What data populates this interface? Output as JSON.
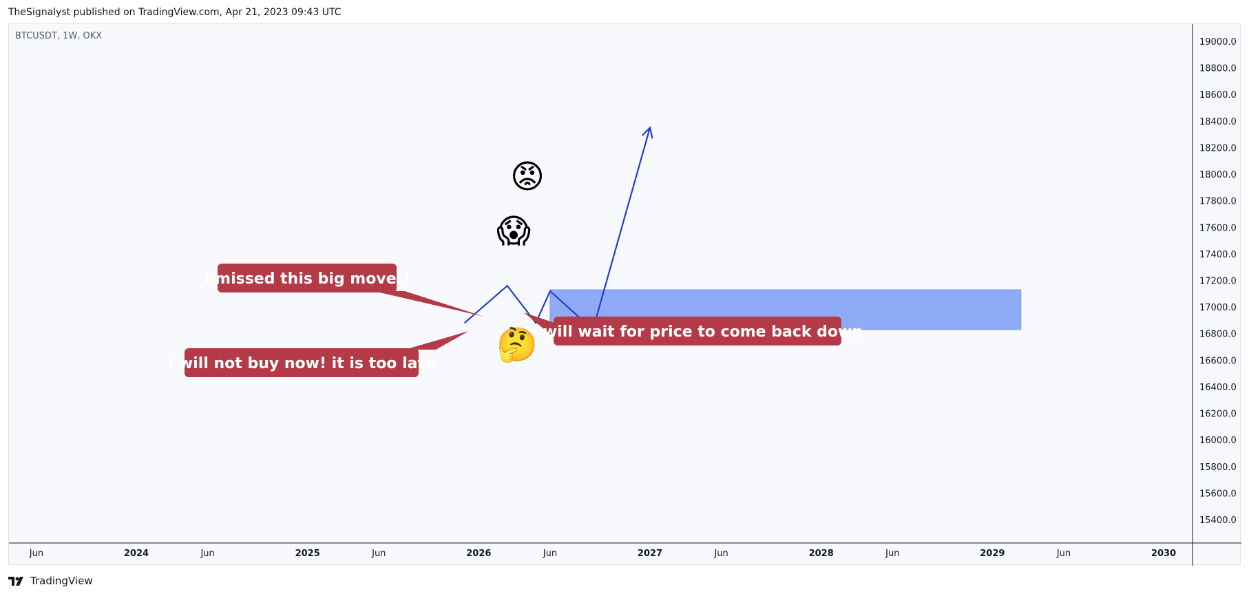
{
  "header": {
    "publish_line": "TheSignalyst published on TradingView.com, Apr 21, 2023 09:43 UTC"
  },
  "chart_info": {
    "symbol_line": "BTCUSDT, 1W, OKX"
  },
  "footer": {
    "brand": "TradingView",
    "logo_icon": "tradingview-logo-icon"
  },
  "colors": {
    "path_line": "#1e3fd0",
    "zone_fill": "#8fabf8",
    "callout_bg": "#b53a47",
    "plot_bg": "#f8f9fd",
    "axis_line": "#131722"
  },
  "annotations": {
    "callouts": [
      {
        "id": "missed",
        "text": "I missed this big move!!"
      },
      {
        "id": "too-late",
        "text": "I will not buy now! it is too late"
      },
      {
        "id": "wait",
        "text": "I will wait for price to come back down"
      }
    ],
    "emojis": [
      {
        "id": "angry",
        "char": "😡",
        "icon": "angry-face-icon"
      },
      {
        "id": "scream",
        "char": "😱",
        "icon": "screaming-face-icon"
      },
      {
        "id": "thinking-person",
        "char": "🤔",
        "icon": "person-thinking-icon"
      }
    ]
  },
  "chart_data": {
    "type": "line",
    "title": "",
    "xlabel": "",
    "ylabel": "",
    "ylim": [
      15200,
      19200
    ],
    "y_ticks": [
      15400,
      15600,
      15800,
      16000,
      16200,
      16400,
      16600,
      16800,
      17000,
      17200,
      17400,
      17600,
      17800,
      18000,
      18200,
      18400,
      18600,
      18800,
      19000
    ],
    "y_tick_labels": [
      "15400.0",
      "15600.0",
      "15800.0",
      "16000.0",
      "16200.0",
      "16400.0",
      "16600.0",
      "16800.0",
      "17000.0",
      "17200.0",
      "17400.0",
      "17600.0",
      "17800.0",
      "18000.0",
      "18200.0",
      "18400.0",
      "18600.0",
      "18800.0",
      "19000.0"
    ],
    "x_ticks": [
      {
        "label": "Jun",
        "bold": false
      },
      {
        "label": "2024",
        "bold": true
      },
      {
        "label": "Jun",
        "bold": false
      },
      {
        "label": "2025",
        "bold": true
      },
      {
        "label": "Jun",
        "bold": false
      },
      {
        "label": "2026",
        "bold": true
      },
      {
        "label": "Jun",
        "bold": false
      },
      {
        "label": "2027",
        "bold": true
      },
      {
        "label": "Jun",
        "bold": false
      },
      {
        "label": "2028",
        "bold": true
      },
      {
        "label": "Jun",
        "bold": false
      },
      {
        "label": "2029",
        "bold": true
      },
      {
        "label": "Jun",
        "bold": false
      },
      {
        "label": "2030",
        "bold": true
      }
    ],
    "projected_path": {
      "points": [
        {
          "x": "2025-12",
          "y": 16880
        },
        {
          "x": "2026-03",
          "y": 17160
        },
        {
          "x": "2026-05",
          "y": 16880
        },
        {
          "x": "2026-06",
          "y": 17120
        },
        {
          "x": "2026-09",
          "y": 16830
        },
        {
          "x": "2027-01",
          "y": 18350
        }
      ],
      "arrow_end": true
    },
    "demand_zone": {
      "x_start": "2026-06",
      "x_end": "2029-03",
      "y_low": 16830,
      "y_high": 17130
    },
    "grid": false,
    "legend": "none"
  }
}
